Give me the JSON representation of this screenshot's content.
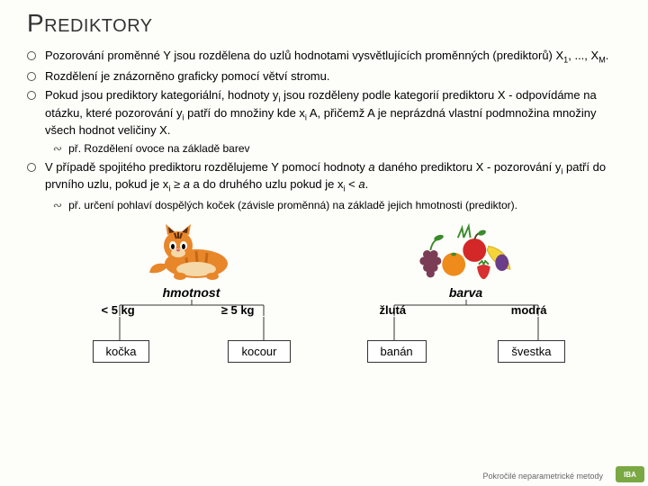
{
  "title": "Prediktory",
  "bullets": [
    {
      "text": "Pozorování proměnné Y jsou rozdělena do uzlů hodnotami vysvětlujících proměnných (prediktorů) X<sub>1</sub>, ..., X<sub>M</sub>."
    },
    {
      "text": "Rozdělení je znázorněno graficky pomocí větví stromu."
    },
    {
      "text": "Pokud jsou prediktory kategoriální, hodnoty y<sub>i</sub> jsou rozděleny podle kategorií prediktoru X - odpovídáme na otázku, které pozorování y<sub>i</sub> patří do množiny kde x<sub>i</sub> A, přičemž A je neprázdná vlastní podmnožina množiny všech hodnot veličiny X."
    }
  ],
  "sub1": "př. Rozdělení ovoce na základě barev",
  "bullet4": "V případě spojitého prediktoru rozdělujeme Y pomocí hodnoty <i>a</i> daného prediktoru X - pozorování y<sub>i</sub> patří do prvního uzlu, pokud je x<sub>i</sub> ≥ <i>a</i> a do druhého uzlu pokud je x<sub>i</sub> < <i>a</i>.",
  "sub2": "př. určení pohlaví dospělých koček (závisle proměnná) na základě jejich hmotnosti (prediktor).",
  "tree1": {
    "root": "hmotnost",
    "left_label": "< 5 kg",
    "right_label": "≥ 5 kg",
    "left_leaf": "kočka",
    "right_leaf": "kocour",
    "line_color": "#333",
    "box_bg": "#ffffff"
  },
  "tree2": {
    "root": "barva",
    "left_label": "žlutá",
    "right_label": "modrá",
    "left_leaf": "banán",
    "right_leaf": "švestka",
    "line_color": "#333",
    "box_bg": "#ffffff"
  },
  "footer": "Pokročilé neparametrické metody",
  "logo_text": "IBA",
  "colors": {
    "cat_orange": "#e8862a",
    "cat_stripe": "#c46a15",
    "cat_cream": "#f5d9a8",
    "apple": "#d42828",
    "banana": "#f5d43a",
    "orange_fruit": "#ee8b1a",
    "strawberry": "#d83030",
    "plum": "#6a3d8a",
    "leaf": "#3a8a2a",
    "grape": "#7a3d55"
  }
}
